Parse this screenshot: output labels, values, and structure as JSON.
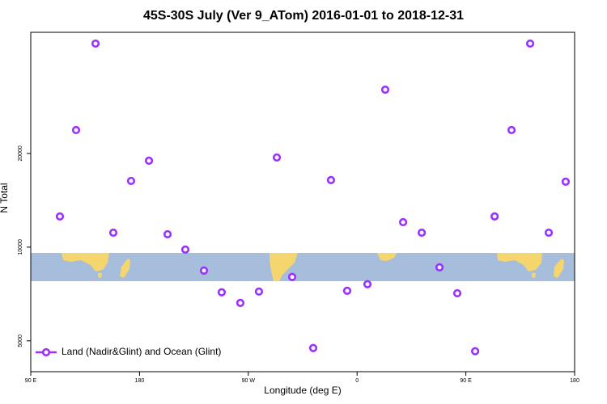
{
  "chart_data": {
    "type": "scatter",
    "title": "45S-30S July (Ver 9_ATom)   2016-01-01 to 2018-12-31",
    "x_label": "Longitude (deg E)",
    "y_label": "N Total",
    "xlim": [
      90,
      540
    ],
    "xticks": [
      {
        "value": 90,
        "label": "90 E"
      },
      180,
      {
        "value": 270,
        "label": "90 W"
      },
      {
        "value": 360,
        "label": "0"
      },
      {
        "value": 450,
        "label": "90 E"
      },
      {
        "value": 540,
        "label": "180"
      }
    ],
    "ylim": [
      3980,
      49000
    ],
    "yticks": [
      5000,
      10000,
      20000
    ],
    "ylog": true,
    "legend": "bottomleft",
    "series": [
      {
        "name": "Land (Nadir&Glint) and Ocean (Glint)",
        "color": "#9b30ff",
        "x": [
          114.1,
          127.5,
          143.6,
          158.3,
          173.0,
          187.8,
          203.2,
          217.9,
          233.3,
          248.0,
          263.4,
          278.8,
          293.6,
          306.3,
          323.7,
          338.4,
          351.8,
          368.6,
          383.3,
          398.1,
          413.5,
          428.2,
          442.9,
          457.7,
          473.8,
          487.8,
          503.2,
          518.6,
          532.6
        ],
        "values": [
          12550,
          23780,
          45080,
          11130,
          16320,
          18960,
          11000,
          9820,
          8410,
          7160,
          6620,
          7200,
          19410,
          8020,
          4740,
          16420,
          7240,
          7600,
          32060,
          12030,
          11130,
          8610,
          7110,
          4630,
          12550,
          23780,
          45080,
          11130,
          16230
        ]
      }
    ]
  }
}
